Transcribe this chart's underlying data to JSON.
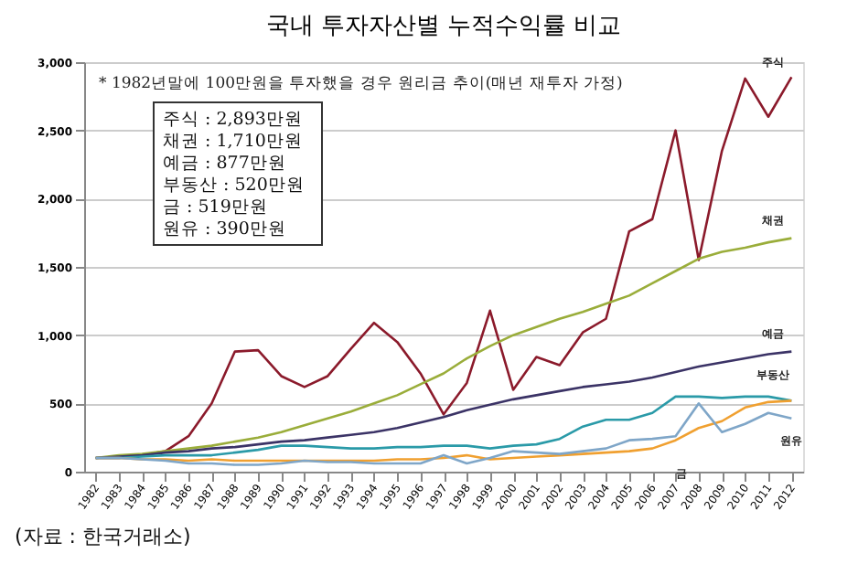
{
  "chart_data": {
    "type": "line",
    "title": "국내 투자자산별 누적수익률 비교",
    "categories": [
      "1982",
      "1983",
      "1984",
      "1985",
      "1986",
      "1987",
      "1988",
      "1989",
      "1990",
      "1991",
      "1992",
      "1993",
      "1994",
      "1995",
      "1996",
      "1997",
      "1998",
      "1999",
      "2000",
      "2001",
      "2002",
      "2003",
      "2004",
      "2005",
      "2006",
      "2007",
      "2008",
      "2009",
      "2010",
      "2011",
      "2012"
    ],
    "series": [
      {
        "name": "주식",
        "color": "#8b1a2b",
        "values": [
          100,
          100,
          120,
          150,
          260,
          500,
          880,
          890,
          700,
          620,
          700,
          900,
          1090,
          950,
          720,
          420,
          650,
          1180,
          600,
          840,
          780,
          1020,
          1120,
          1760,
          1850,
          2500,
          1550,
          2350,
          2880,
          2600,
          2890
        ]
      },
      {
        "name": "채권",
        "color": "#9aad3a",
        "values": [
          100,
          120,
          130,
          150,
          170,
          190,
          220,
          250,
          290,
          340,
          390,
          440,
          500,
          560,
          640,
          720,
          830,
          920,
          1000,
          1060,
          1120,
          1170,
          1230,
          1290,
          1380,
          1470,
          1560,
          1610,
          1640,
          1680,
          1710
        ]
      },
      {
        "name": "예금",
        "color": "#3b3366",
        "values": [
          100,
          110,
          120,
          140,
          150,
          170,
          180,
          200,
          220,
          230,
          250,
          270,
          290,
          320,
          360,
          400,
          450,
          490,
          530,
          560,
          590,
          620,
          640,
          660,
          690,
          730,
          770,
          800,
          830,
          860,
          880
        ]
      },
      {
        "name": "부동산",
        "color": "#2a9aa8",
        "values": [
          100,
          100,
          110,
          120,
          120,
          120,
          140,
          160,
          190,
          190,
          180,
          170,
          170,
          180,
          180,
          190,
          190,
          170,
          190,
          200,
          240,
          330,
          380,
          380,
          430,
          550,
          550,
          540,
          550,
          550,
          520
        ]
      },
      {
        "name": "금",
        "color": "#f0a030",
        "values": [
          100,
          100,
          90,
          90,
          80,
          90,
          80,
          80,
          80,
          80,
          80,
          80,
          80,
          90,
          90,
          100,
          120,
          90,
          100,
          110,
          120,
          130,
          140,
          150,
          170,
          230,
          320,
          370,
          470,
          510,
          520
        ]
      },
      {
        "name": "원유",
        "color": "#7fa6c8",
        "values": [
          100,
          100,
          90,
          80,
          60,
          60,
          50,
          50,
          60,
          80,
          70,
          70,
          60,
          60,
          60,
          120,
          60,
          100,
          150,
          140,
          130,
          150,
          170,
          230,
          240,
          260,
          500,
          290,
          350,
          430,
          390
        ]
      }
    ],
    "ylim": [
      0,
      3000
    ],
    "yticks": [
      {
        "value": 0,
        "label": "0"
      },
      {
        "value": 500,
        "label": "500"
      },
      {
        "value": 1000,
        "label": "1,000"
      },
      {
        "value": 1500,
        "label": "1,500"
      },
      {
        "value": 2000,
        "label": "2,000"
      },
      {
        "value": 2500,
        "label": "2,500"
      },
      {
        "value": 3000,
        "label": "3,000"
      }
    ],
    "grid": "y",
    "legend": false,
    "marker": "none",
    "line_style": "solid",
    "annotations": [
      "* 1982년말에 100만원을 투자했을 경우 원리금 추이(매년 재투자 가정)",
      "주식 : 2,893만원",
      "채권 : 1,710만원",
      "예금 :     877만원",
      "부동산 : 520만원",
      "금 :       519만원",
      "원유 :     390만원",
      "(자료 : 한국거래소)"
    ]
  }
}
